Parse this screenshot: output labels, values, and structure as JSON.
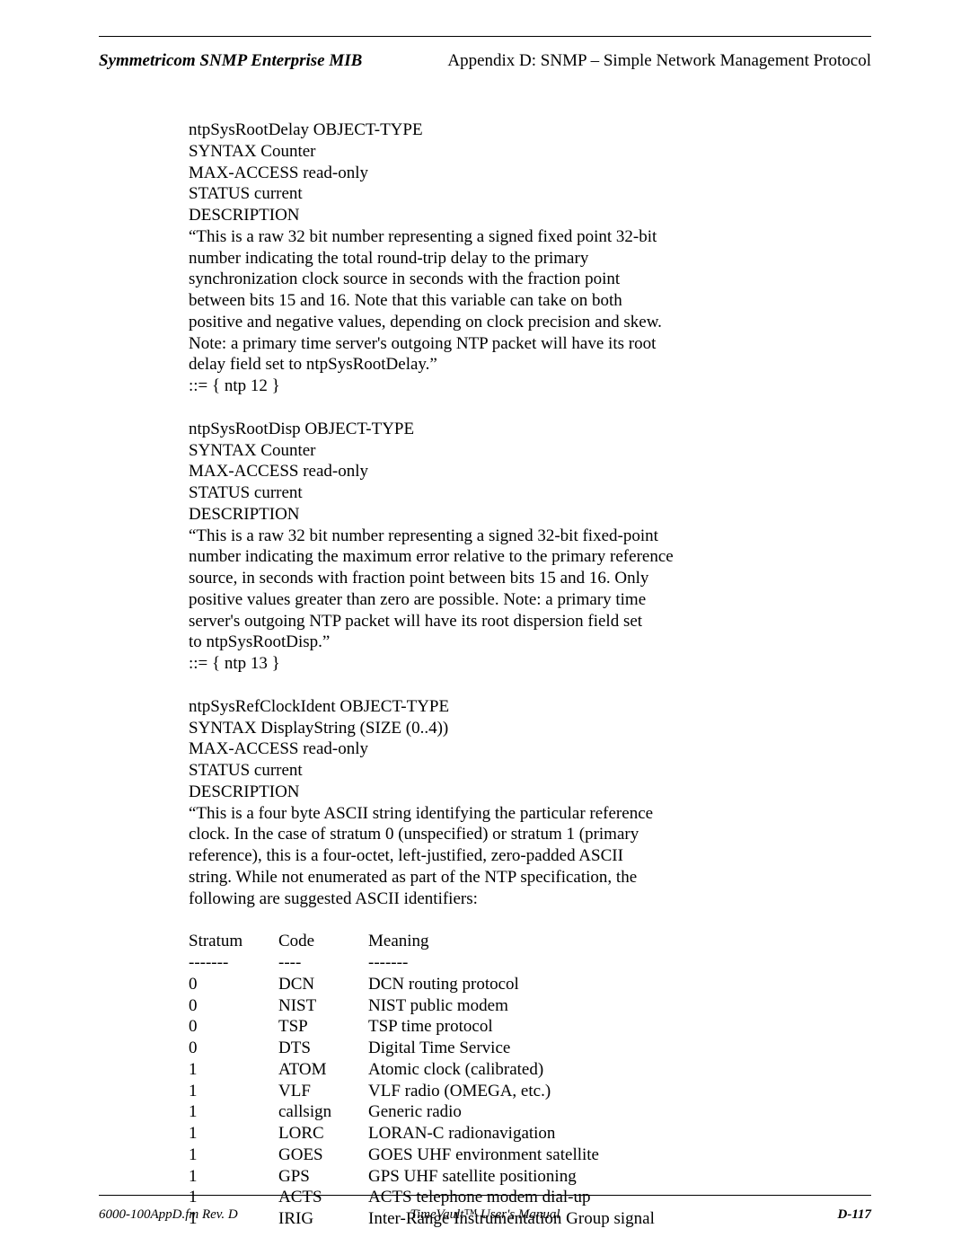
{
  "header": {
    "left": "Symmetricom SNMP Enterprise MIB",
    "right": "Appendix D: SNMP – Simple Network Management Protocol"
  },
  "footer": {
    "left": "6000-100AppD.fm  Rev. D",
    "center": "TimeVault™ User's Manual",
    "right": "D-117"
  },
  "block1": {
    "l1": "ntpSysRootDelay OBJECT-TYPE",
    "l2": "SYNTAX Counter",
    "l3": "MAX-ACCESS read-only",
    "l4": "STATUS current",
    "l5": "DESCRIPTION",
    "l6": "“This is a raw 32 bit number representing a signed fixed point 32-bit",
    "l7": "number indicating the total round-trip delay to the primary",
    "l8": "synchronization clock source in seconds with the fraction point",
    "l9": "between bits 15 and 16.  Note that this variable can take on both",
    "l10": "positive and negative values, depending on clock precision and skew.",
    "l11": "Note: a primary time server's outgoing NTP packet will have its root",
    "l12": "delay field set to ntpSysRootDelay.”",
    "l13": "::= { ntp 12 }"
  },
  "block2": {
    "l1": "ntpSysRootDisp OBJECT-TYPE",
    "l2": "SYNTAX Counter",
    "l3": "MAX-ACCESS read-only",
    "l4": "STATUS current",
    "l5": "DESCRIPTION",
    "l6": "“This is a raw 32 bit number representing a signed 32-bit fixed-point",
    "l7": "number indicating the maximum error relative to the primary reference",
    "l8": "source, in seconds with fraction point between bits 15 and 16. Only",
    "l9": "positive values greater than zero are possible.  Note: a primary time",
    "l10": "server's outgoing NTP packet will have its root dispersion field set",
    "l11": "to ntpSysRootDisp.”",
    "l12": "::= { ntp 13 }"
  },
  "block3": {
    "l1": "ntpSysRefClockIdent OBJECT-TYPE",
    "l2": "SYNTAX DisplayString (SIZE (0..4))",
    "l3": "MAX-ACCESS read-only",
    "l4": "STATUS current",
    "l5": "DESCRIPTION",
    "l6": "“This is a four byte ASCII string identifying the particular reference",
    "l7": "clock.  In the case of stratum 0 (unspecified) or stratum 1 (primary",
    "l8": "reference), this is a four-octet, left-justified, zero-padded ASCII",
    "l9": "string. While not enumerated as part of the NTP specification, the",
    "l10": "following are suggested ASCII identifiers:"
  },
  "table": {
    "columns": {
      "stratum": "Stratum",
      "code": "Code",
      "meaning": "Meaning"
    },
    "dashes": {
      "stratum": "-------",
      "code": "----",
      "meaning": "-------"
    },
    "rows": [
      {
        "stratum": "0",
        "code": "DCN",
        "meaning": "DCN routing protocol"
      },
      {
        "stratum": "0",
        "code": "NIST",
        "meaning": "NIST public modem"
      },
      {
        "stratum": "0",
        "code": "TSP",
        "meaning": "TSP time protocol"
      },
      {
        "stratum": "0",
        "code": "DTS",
        "meaning": "Digital Time Service"
      },
      {
        "stratum": "1",
        "code": "ATOM",
        "meaning": "Atomic clock (calibrated)"
      },
      {
        "stratum": "1",
        "code": "VLF",
        "meaning": "VLF radio (OMEGA, etc.)"
      },
      {
        "stratum": "1",
        "code": "callsign",
        "meaning": "Generic radio"
      },
      {
        "stratum": "1",
        "code": "LORC",
        "meaning": "LORAN-C radionavigation"
      },
      {
        "stratum": "1",
        "code": "GOES",
        "meaning": "GOES UHF environment satellite"
      },
      {
        "stratum": "1",
        "code": "GPS",
        "meaning": "GPS UHF satellite positioning"
      },
      {
        "stratum": "1",
        "code": "ACTS",
        "meaning": "ACTS telephone modem dial-up"
      },
      {
        "stratum": "1",
        "code": "IRIG",
        "meaning": "Inter-Range Instrumentation Group signal"
      }
    ]
  }
}
